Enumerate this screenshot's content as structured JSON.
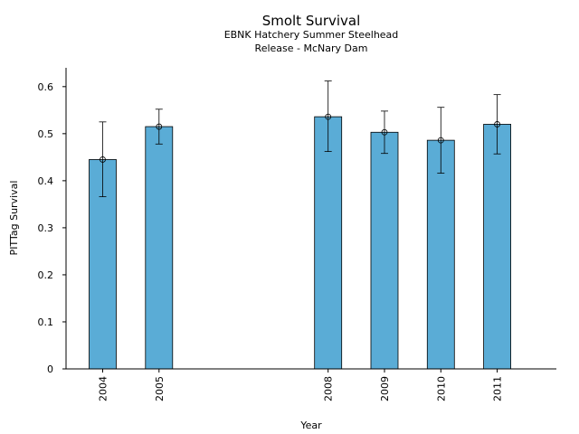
{
  "chart_data": {
    "type": "bar",
    "title": "Smolt Survival",
    "subtitle_lines": [
      "EBNK Hatchery Summer Steelhead",
      "Release - McNary Dam"
    ],
    "xlabel": "Year",
    "ylabel": "PITTag Survival",
    "x_range": [
      2003.35,
      2012.05
    ],
    "ylim": [
      0,
      0.64
    ],
    "yticks": [
      0,
      0.1,
      0.2,
      0.3,
      0.4,
      0.5,
      0.6
    ],
    "ytick_labels": [
      "0",
      "0.1",
      "0.2",
      "0.3",
      "0.4",
      "0.5",
      "0.6"
    ],
    "grid": false,
    "bar_color": "#5aacd6",
    "bars": [
      {
        "year": 2004,
        "label": "2004",
        "value": 0.445,
        "lower": 0.366,
        "upper": 0.525
      },
      {
        "year": 2005,
        "label": "2005",
        "value": 0.515,
        "lower": 0.478,
        "upper": 0.552
      },
      {
        "year": 2008,
        "label": "2008",
        "value": 0.536,
        "lower": 0.462,
        "upper": 0.612
      },
      {
        "year": 2009,
        "label": "2009",
        "value": 0.503,
        "lower": 0.458,
        "upper": 0.548
      },
      {
        "year": 2010,
        "label": "2010",
        "value": 0.486,
        "lower": 0.416,
        "upper": 0.556
      },
      {
        "year": 2011,
        "label": "2011",
        "value": 0.52,
        "lower": 0.457,
        "upper": 0.583
      }
    ]
  }
}
